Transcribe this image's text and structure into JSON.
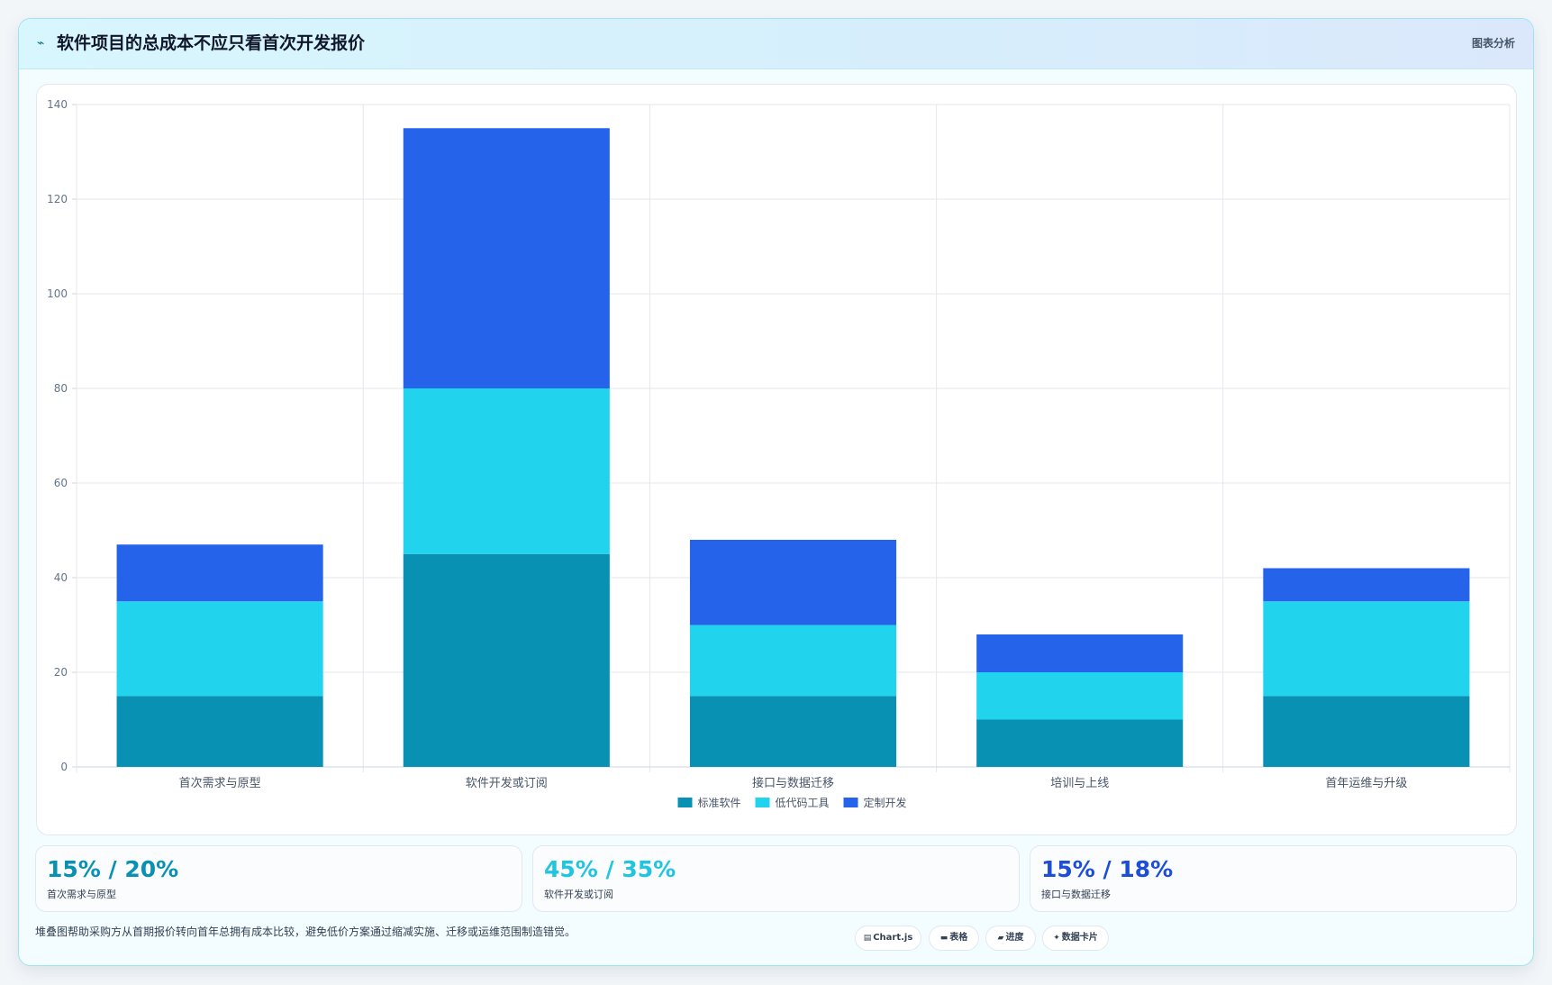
{
  "header": {
    "logo_icon": "wave-icon",
    "title": "软件项目的总成本不应只看首次开发报价",
    "tag": "图表分析"
  },
  "chart_data": {
    "type": "bar",
    "stacked": true,
    "categories": [
      "首次需求与原型",
      "软件开发或订阅",
      "接口与数据迁移",
      "培训与上线",
      "首年运维与升级"
    ],
    "series": [
      {
        "name": "标准软件",
        "color": "#0891b2",
        "values": [
          15,
          45,
          15,
          10,
          15
        ]
      },
      {
        "name": "低代码工具",
        "color": "#22d3ee",
        "values": [
          20,
          35,
          15,
          10,
          20
        ]
      },
      {
        "name": "定制开发",
        "color": "#2563eb",
        "values": [
          12,
          55,
          18,
          8,
          7
        ]
      }
    ],
    "ylim": [
      0,
      140
    ],
    "yticks": [
      0,
      20,
      40,
      60,
      80,
      100,
      120,
      140
    ],
    "grid": true,
    "legend": "bottom"
  },
  "kpis": [
    {
      "value": "15% / 20%",
      "label": "首次需求与原型",
      "color": "#0891b2"
    },
    {
      "value": "45% / 35%",
      "label": "软件开发或订阅",
      "color": "#22c5e0"
    },
    {
      "value": "15% / 18%",
      "label": "接口与数据迁移",
      "color": "#1d4ed8"
    }
  ],
  "footnote": "堆叠图帮助采购方从首期报价转向首年总拥有成本比较，避免低价方案通过缩减实施、迁移或运维范围制造错觉。",
  "chips": [
    {
      "label": "Chart.js",
      "icon": "chart-icon"
    },
    {
      "label": "表格",
      "icon": "table-icon"
    },
    {
      "label": "进度",
      "icon": "progress-icon"
    },
    {
      "label": "数据卡片",
      "icon": "sparkle-icon"
    }
  ]
}
